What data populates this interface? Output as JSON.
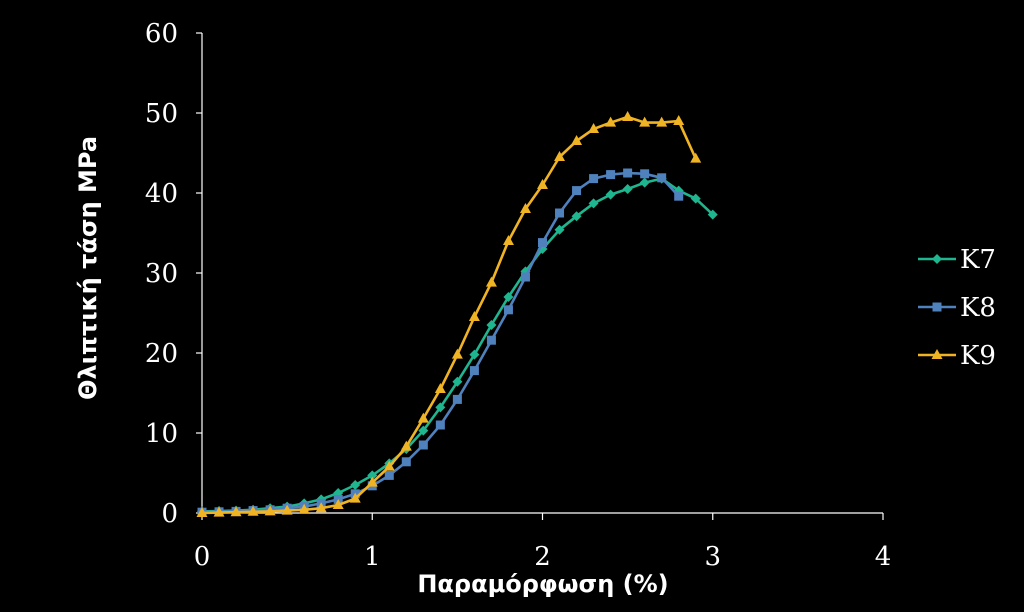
{
  "chart_data": {
    "type": "line",
    "title": "",
    "xlabel": "Παραμόρφωση (%)",
    "ylabel": "Θλιπτική τάση MPa",
    "xlim": [
      0,
      4
    ],
    "ylim": [
      0,
      60
    ],
    "xticks": [
      0,
      1,
      2,
      3,
      4
    ],
    "yticks": [
      0,
      10,
      20,
      30,
      40,
      50,
      60
    ],
    "grid": false,
    "legend_position": "right",
    "series": [
      {
        "name": "K7",
        "color": "#1fb58f",
        "marker": "diamond",
        "points": [
          [
            0,
            0.2
          ],
          [
            0.1,
            0.25
          ],
          [
            0.2,
            0.3
          ],
          [
            0.3,
            0.4
          ],
          [
            0.4,
            0.6
          ],
          [
            0.5,
            0.8
          ],
          [
            0.6,
            1.2
          ],
          [
            0.7,
            1.7
          ],
          [
            0.8,
            2.5
          ],
          [
            0.9,
            3.5
          ],
          [
            1.0,
            4.7
          ],
          [
            1.1,
            6.2
          ],
          [
            1.2,
            8.0
          ],
          [
            1.3,
            10.3
          ],
          [
            1.4,
            13.2
          ],
          [
            1.5,
            16.4
          ],
          [
            1.6,
            19.8
          ],
          [
            1.7,
            23.5
          ],
          [
            1.8,
            27.0
          ],
          [
            1.9,
            30.2
          ],
          [
            2.0,
            33.0
          ],
          [
            2.1,
            35.4
          ],
          [
            2.2,
            37.1
          ],
          [
            2.3,
            38.7
          ],
          [
            2.4,
            39.8
          ],
          [
            2.5,
            40.5
          ],
          [
            2.6,
            41.3
          ],
          [
            2.7,
            41.8
          ],
          [
            2.8,
            40.3
          ],
          [
            2.9,
            39.3
          ],
          [
            3.0,
            37.3
          ]
        ]
      },
      {
        "name": "K8",
        "color": "#4f81bd",
        "marker": "square",
        "points": [
          [
            0,
            0.1
          ],
          [
            0.1,
            0.15
          ],
          [
            0.2,
            0.2
          ],
          [
            0.3,
            0.3
          ],
          [
            0.4,
            0.4
          ],
          [
            0.5,
            0.6
          ],
          [
            0.6,
            0.8
          ],
          [
            0.7,
            1.2
          ],
          [
            0.8,
            1.7
          ],
          [
            0.9,
            2.4
          ],
          [
            1.0,
            3.4
          ],
          [
            1.1,
            4.7
          ],
          [
            1.2,
            6.4
          ],
          [
            1.3,
            8.5
          ],
          [
            1.4,
            11.0
          ],
          [
            1.5,
            14.2
          ],
          [
            1.6,
            17.8
          ],
          [
            1.7,
            21.6
          ],
          [
            1.8,
            25.4
          ],
          [
            1.9,
            29.5
          ],
          [
            2.0,
            33.8
          ],
          [
            2.1,
            37.5
          ],
          [
            2.2,
            40.3
          ],
          [
            2.3,
            41.8
          ],
          [
            2.4,
            42.3
          ],
          [
            2.5,
            42.5
          ],
          [
            2.6,
            42.4
          ],
          [
            2.7,
            41.9
          ],
          [
            2.8,
            39.6
          ]
        ]
      },
      {
        "name": "K9",
        "color": "#f0b323",
        "marker": "triangle",
        "points": [
          [
            0,
            0.0
          ],
          [
            0.1,
            0.05
          ],
          [
            0.2,
            0.1
          ],
          [
            0.3,
            0.15
          ],
          [
            0.4,
            0.2
          ],
          [
            0.5,
            0.3
          ],
          [
            0.6,
            0.4
          ],
          [
            0.7,
            0.6
          ],
          [
            0.8,
            1.0
          ],
          [
            0.9,
            1.8
          ],
          [
            1.0,
            3.8
          ],
          [
            1.1,
            5.8
          ],
          [
            1.2,
            8.3
          ],
          [
            1.3,
            11.8
          ],
          [
            1.4,
            15.5
          ],
          [
            1.5,
            19.8
          ],
          [
            1.6,
            24.5
          ],
          [
            1.7,
            28.8
          ],
          [
            1.8,
            34.0
          ],
          [
            1.9,
            38.0
          ],
          [
            2.0,
            41.0
          ],
          [
            2.1,
            44.5
          ],
          [
            2.2,
            46.5
          ],
          [
            2.3,
            48.0
          ],
          [
            2.4,
            48.8
          ],
          [
            2.5,
            49.5
          ],
          [
            2.6,
            48.8
          ],
          [
            2.7,
            48.8
          ],
          [
            2.8,
            49.0
          ],
          [
            2.9,
            44.3
          ]
        ]
      }
    ]
  }
}
